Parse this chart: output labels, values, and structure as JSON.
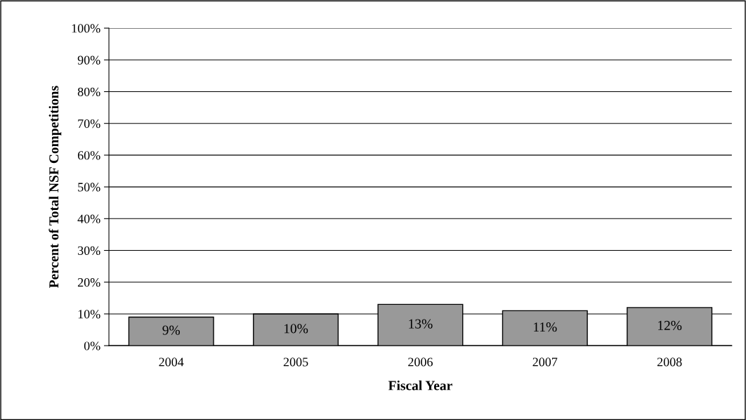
{
  "chart_data": {
    "type": "bar",
    "xlabel": "Fiscal Year",
    "ylabel": "Percent of Total NSF Competitions",
    "categories": [
      "2004",
      "2005",
      "2006",
      "2007",
      "2008"
    ],
    "values": [
      9,
      10,
      13,
      11,
      12
    ],
    "value_labels": [
      "9%",
      "10%",
      "13%",
      "11%",
      "12%"
    ],
    "color": "#999999",
    "ylim": [
      0,
      100
    ],
    "yticks": [
      {
        "value": 0,
        "label": "0%"
      },
      {
        "value": 10,
        "label": "10%"
      },
      {
        "value": 20,
        "label": "20%"
      },
      {
        "value": 30,
        "label": "30%"
      },
      {
        "value": 40,
        "label": "40%"
      },
      {
        "value": 50,
        "label": "50%"
      },
      {
        "value": 60,
        "label": "60%"
      },
      {
        "value": 70,
        "label": "70%"
      },
      {
        "value": 80,
        "label": "80%"
      },
      {
        "value": 90,
        "label": "90%"
      },
      {
        "value": 100,
        "label": "100%"
      }
    ],
    "grid": "y",
    "legend": false
  }
}
